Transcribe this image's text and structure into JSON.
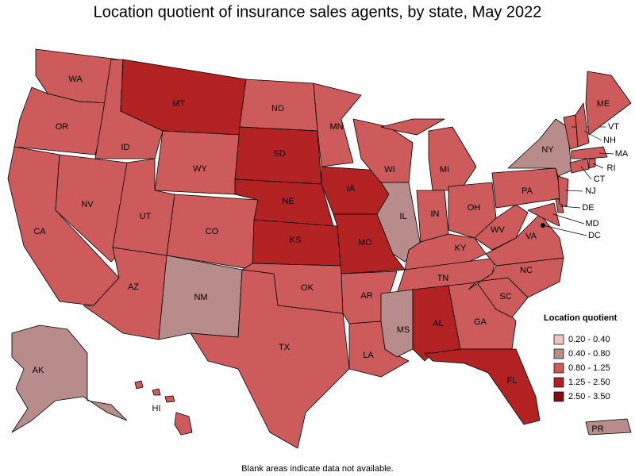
{
  "title": "Location quotient of insurance sales agents, by state, May 2022",
  "legend": {
    "title": "Location quotient",
    "items": [
      {
        "label": "0.20 - 0.40",
        "color": "#f3c3c3"
      },
      {
        "label": "0.40 - 0.80",
        "color": "#b98c8c"
      },
      {
        "label": "0.80 - 1.25",
        "color": "#cd5b5b"
      },
      {
        "label": "1.25 - 2.50",
        "color": "#b22222"
      },
      {
        "label": "2.50 - 3.50",
        "color": "#850e0e"
      }
    ]
  },
  "states": [
    {
      "label": "WA",
      "bin": "0.80 - 1.25"
    },
    {
      "label": "OR",
      "bin": "0.80 - 1.25"
    },
    {
      "label": "CA",
      "bin": "0.80 - 1.25"
    },
    {
      "label": "ID",
      "bin": "0.80 - 1.25"
    },
    {
      "label": "NV",
      "bin": "0.80 - 1.25"
    },
    {
      "label": "MT",
      "bin": "1.25 - 2.50"
    },
    {
      "label": "WY",
      "bin": "0.80 - 1.25"
    },
    {
      "label": "UT",
      "bin": "0.80 - 1.25"
    },
    {
      "label": "AZ",
      "bin": "0.80 - 1.25"
    },
    {
      "label": "CO",
      "bin": "0.80 - 1.25"
    },
    {
      "label": "NM",
      "bin": "0.40 - 0.80"
    },
    {
      "label": "ND",
      "bin": "0.80 - 1.25"
    },
    {
      "label": "SD",
      "bin": "1.25 - 2.50"
    },
    {
      "label": "NE",
      "bin": "1.25 - 2.50"
    },
    {
      "label": "KS",
      "bin": "1.25 - 2.50"
    },
    {
      "label": "OK",
      "bin": "0.80 - 1.25"
    },
    {
      "label": "TX",
      "bin": "0.80 - 1.25"
    },
    {
      "label": "MN",
      "bin": "0.80 - 1.25"
    },
    {
      "label": "IA",
      "bin": "1.25 - 2.50"
    },
    {
      "label": "MO",
      "bin": "1.25 - 2.50"
    },
    {
      "label": "AR",
      "bin": "0.80 - 1.25"
    },
    {
      "label": "LA",
      "bin": "0.80 - 1.25"
    },
    {
      "label": "WI",
      "bin": "0.80 - 1.25"
    },
    {
      "label": "IL",
      "bin": "0.40 - 0.80"
    },
    {
      "label": "MI",
      "bin": "0.80 - 1.25"
    },
    {
      "label": "IN",
      "bin": "0.80 - 1.25"
    },
    {
      "label": "OH",
      "bin": "0.80 - 1.25"
    },
    {
      "label": "KY",
      "bin": "0.80 - 1.25"
    },
    {
      "label": "TN",
      "bin": "0.80 - 1.25"
    },
    {
      "label": "MS",
      "bin": "0.40 - 0.80"
    },
    {
      "label": "AL",
      "bin": "1.25 - 2.50"
    },
    {
      "label": "GA",
      "bin": "0.80 - 1.25"
    },
    {
      "label": "FL",
      "bin": "1.25 - 2.50"
    },
    {
      "label": "SC",
      "bin": "0.80 - 1.25"
    },
    {
      "label": "NC",
      "bin": "0.80 - 1.25"
    },
    {
      "label": "VA",
      "bin": "0.80 - 1.25"
    },
    {
      "label": "WV",
      "bin": "0.80 - 1.25"
    },
    {
      "label": "PA",
      "bin": "0.80 - 1.25"
    },
    {
      "label": "NY",
      "bin": "0.40 - 0.80"
    },
    {
      "label": "MD",
      "bin": "0.80 - 1.25"
    },
    {
      "label": "DE",
      "bin": "0.80 - 1.25"
    },
    {
      "label": "NJ",
      "bin": "0.80 - 1.25"
    },
    {
      "label": "CT",
      "bin": "0.80 - 1.25"
    },
    {
      "label": "RI",
      "bin": "0.80 - 1.25"
    },
    {
      "label": "MA",
      "bin": "0.80 - 1.25"
    },
    {
      "label": "VT",
      "bin": "0.80 - 1.25"
    },
    {
      "label": "NH",
      "bin": "0.80 - 1.25"
    },
    {
      "label": "ME",
      "bin": "0.80 - 1.25"
    },
    {
      "label": "DC",
      "bin": "0.80 - 1.25"
    },
    {
      "label": "AK",
      "bin": "0.40 - 0.80"
    },
    {
      "label": "HI",
      "bin": "0.80 - 1.25"
    },
    {
      "label": "PR",
      "bin": "0.40 - 0.80"
    }
  ],
  "footnote": "Blank areas indicate data not available."
}
